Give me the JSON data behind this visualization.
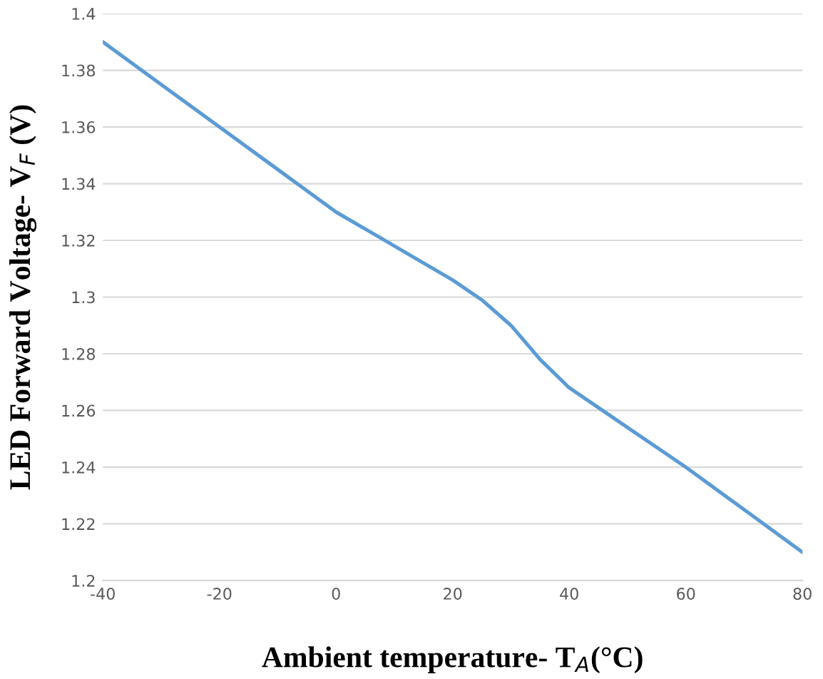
{
  "chart_data": {
    "type": "line",
    "xlabel": "Ambient temperature- T$_{A}$(°C)",
    "ylabel": "LED Forward Voltage- V$_{F}$ (V)",
    "x": [
      -40,
      -30,
      -20,
      -10,
      0,
      10,
      20,
      25,
      30,
      35,
      40,
      50,
      60,
      70,
      80
    ],
    "series": [
      {
        "color": "#5b9bd5",
        "values": [
          1.39,
          1.375,
          1.36,
          1.345,
          1.33,
          1.318,
          1.306,
          1.299,
          1.29,
          1.278,
          1.268,
          1.254,
          1.24,
          1.225,
          1.21
        ]
      }
    ],
    "xlim": [
      -40,
      80
    ],
    "xticks": [
      -40,
      -20,
      0,
      20,
      40,
      60,
      80
    ],
    "ylim": [
      1.2,
      1.4
    ],
    "yticks": [
      1.2,
      1.22,
      1.24,
      1.26,
      1.28,
      1.3,
      1.32,
      1.34,
      1.36,
      1.38,
      1.4
    ],
    "grid": "y",
    "marker": "none",
    "line_style": "solid"
  }
}
